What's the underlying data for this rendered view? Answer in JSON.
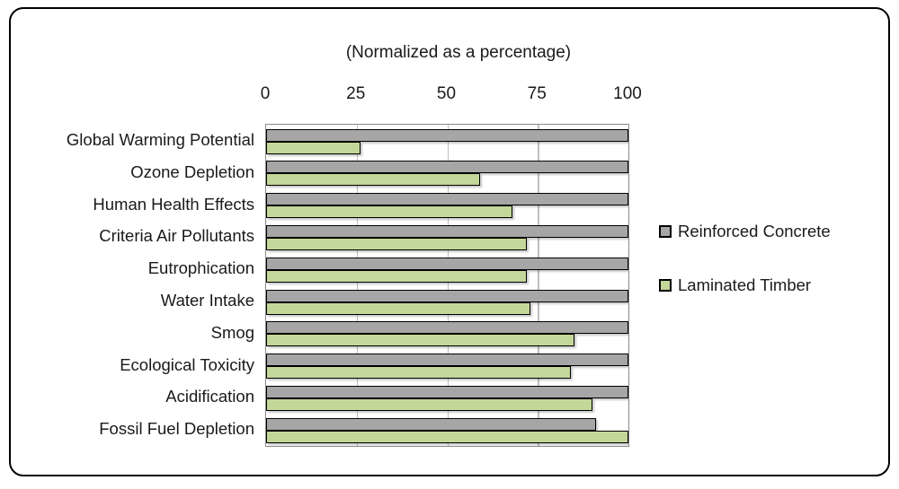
{
  "chart_data": {
    "type": "bar",
    "orientation": "horizontal",
    "title": "(Normalized as a percentage)",
    "xlabel": "",
    "ylabel": "",
    "xlim": [
      0,
      100
    ],
    "x_ticks": [
      0,
      25,
      50,
      75,
      100
    ],
    "grid": "vertical",
    "legend_position": "right",
    "categories": [
      "Global Warming Potential",
      "Ozone Depletion",
      "Human Health Effects",
      "Criteria Air Pollutants",
      "Eutrophication",
      "Water Intake",
      "Smog",
      "Ecological Toxicity",
      "Acidification",
      "Fossil Fuel Depletion"
    ],
    "series": [
      {
        "name": "Reinforced Concrete",
        "color": "#a6a6a6",
        "values": [
          100,
          100,
          100,
          100,
          100,
          100,
          100,
          100,
          100,
          91
        ]
      },
      {
        "name": "Laminated Timber",
        "color": "#c4d79b",
        "values": [
          26,
          59,
          68,
          72,
          72,
          73,
          85,
          84,
          90,
          100
        ]
      }
    ]
  },
  "colors": {
    "bar_border": "#000000",
    "gridline": "#bfbfbf",
    "plot_border": "#8a8a8a",
    "frame_border": "#000000",
    "text": "#1a1a1a"
  }
}
